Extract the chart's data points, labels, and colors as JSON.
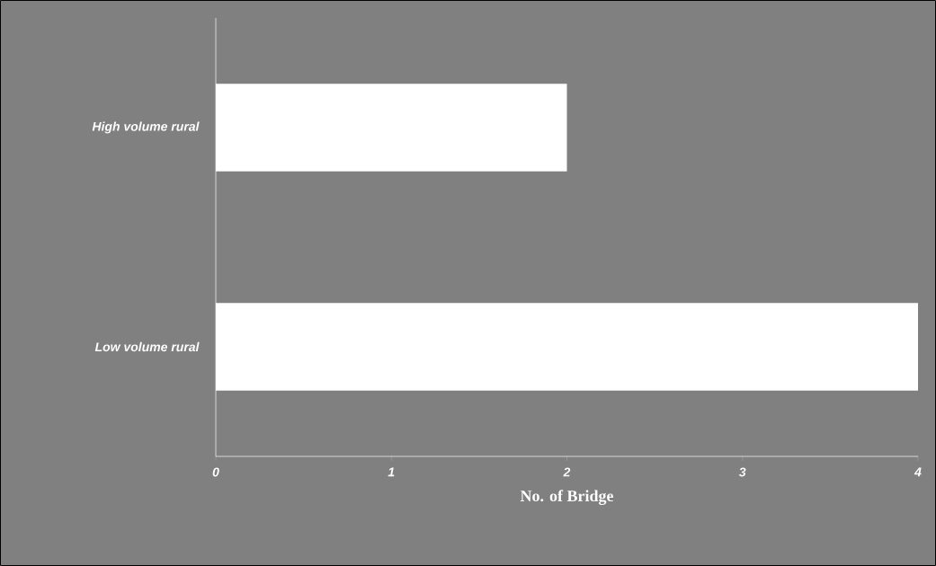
{
  "chart_data": {
    "type": "bar",
    "orientation": "horizontal",
    "xlabel": "No. of Bridge",
    "categories": [
      "High volume rural",
      "Low volume rural"
    ],
    "values": [
      2,
      4
    ],
    "color": "#ffffff",
    "xlim": [
      0,
      4
    ],
    "xticks": [
      0,
      1,
      2,
      3,
      4
    ]
  }
}
